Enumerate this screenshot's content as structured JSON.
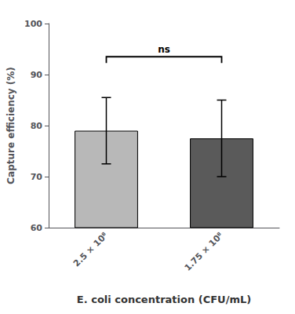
{
  "chart_data": {
    "type": "bar",
    "categories": [
      "2.5 × 10⁸",
      "1.75 × 10⁸"
    ],
    "values": [
      79.0,
      77.5
    ],
    "errors": [
      6.5,
      7.5
    ],
    "colors": [
      "#b8b8b8",
      "#5a5a5a"
    ],
    "xlabel": "E. coli concentration (CFU/mL)",
    "ylabel": "Capture efficiency (%)",
    "ylim": [
      60,
      100
    ],
    "yticks": [
      60,
      70,
      80,
      90,
      100
    ],
    "grid": false,
    "annotations": [
      {
        "text": "ns",
        "y": 93.5
      }
    ]
  }
}
